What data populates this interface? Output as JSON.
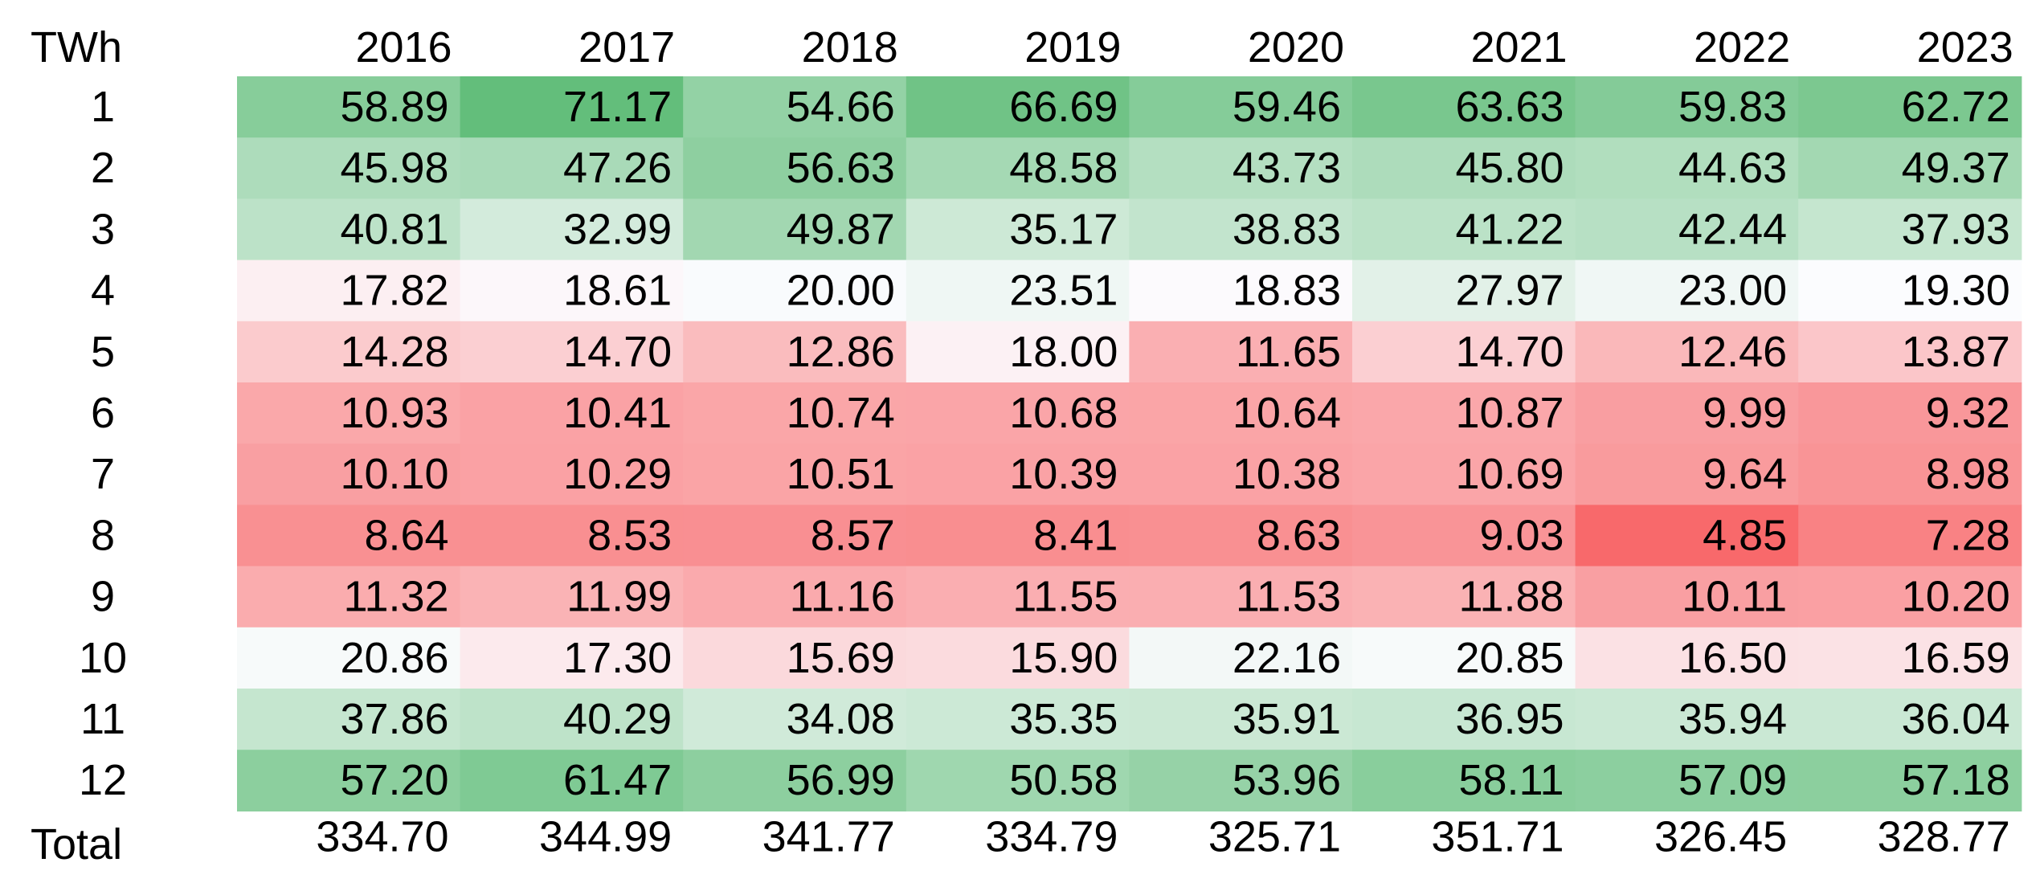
{
  "chart_data": {
    "type": "heatmap",
    "unit_label": "TWh",
    "columns": [
      "2016",
      "2017",
      "2018",
      "2019",
      "2020",
      "2021",
      "2022",
      "2023"
    ],
    "rows": [
      "1",
      "2",
      "3",
      "4",
      "5",
      "6",
      "7",
      "8",
      "9",
      "10",
      "11",
      "12"
    ],
    "values": [
      [
        "58.89",
        "71.17",
        "54.66",
        "66.69",
        "59.46",
        "63.63",
        "59.83",
        "62.72"
      ],
      [
        "45.98",
        "47.26",
        "56.63",
        "48.58",
        "43.73",
        "45.80",
        "44.63",
        "49.37"
      ],
      [
        "40.81",
        "32.99",
        "49.87",
        "35.17",
        "38.83",
        "41.22",
        "42.44",
        "37.93"
      ],
      [
        "17.82",
        "18.61",
        "20.00",
        "23.51",
        "18.83",
        "27.97",
        "23.00",
        "19.30"
      ],
      [
        "14.28",
        "14.70",
        "12.86",
        "18.00",
        "11.65",
        "14.70",
        "12.46",
        "13.87"
      ],
      [
        "10.93",
        "10.41",
        "10.74",
        "10.68",
        "10.64",
        "10.87",
        "9.99",
        "9.32"
      ],
      [
        "10.10",
        "10.29",
        "10.51",
        "10.39",
        "10.38",
        "10.69",
        "9.64",
        "8.98"
      ],
      [
        "8.64",
        "8.53",
        "8.57",
        "8.41",
        "8.63",
        "9.03",
        "4.85",
        "7.28"
      ],
      [
        "11.32",
        "11.99",
        "11.16",
        "11.55",
        "11.53",
        "11.88",
        "10.11",
        "10.20"
      ],
      [
        "20.86",
        "17.30",
        "15.69",
        "15.90",
        "22.16",
        "20.85",
        "16.50",
        "16.59"
      ],
      [
        "37.86",
        "40.29",
        "34.08",
        "35.35",
        "35.91",
        "36.95",
        "35.94",
        "36.04"
      ],
      [
        "57.20",
        "61.47",
        "56.99",
        "50.58",
        "53.96",
        "58.11",
        "57.09",
        "57.18"
      ]
    ],
    "total_label": "Total",
    "totals": [
      "334.70",
      "344.99",
      "341.77",
      "334.79",
      "325.71",
      "351.71",
      "326.45",
      "328.77"
    ],
    "color_scale": {
      "low": "#F8696B",
      "mid": "#FCFCFF",
      "high": "#63BE7B"
    },
    "grid": false,
    "legend": "none"
  }
}
